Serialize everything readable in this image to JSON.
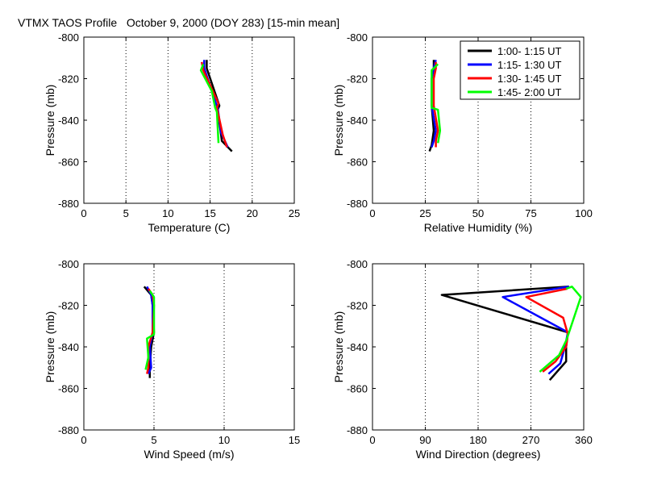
{
  "figure": {
    "title": "VTMX TAOS Profile   October 9, 2000 (DOY 283) [15-min mean]"
  },
  "legend": {
    "location": "top-right of relative-humidity panel",
    "entries": [
      {
        "label": "1:00- 1:15 UT",
        "color": "#000000"
      },
      {
        "label": "1:15- 1:30 UT",
        "color": "#0000ff"
      },
      {
        "label": "1:30- 1:45 UT",
        "color": "#ff0000"
      },
      {
        "label": "1:45- 2:00 UT",
        "color": "#00ff00"
      }
    ]
  },
  "chart_data": [
    {
      "type": "line",
      "id": "temperature",
      "xlabel": "Temperature (C)",
      "ylabel": "Pressure (mb)",
      "xlim": [
        0,
        25
      ],
      "ylim": [
        -880,
        -800
      ],
      "xticks": [
        0,
        5,
        10,
        15,
        20,
        25
      ],
      "yticks": [
        -880,
        -860,
        -840,
        -820,
        -800
      ],
      "grid": "vertical dotted",
      "series": [
        {
          "name": "1:00- 1:15 UT",
          "color": "#000000",
          "x": [
            14.6,
            14.6,
            16.1,
            15.9,
            16.4,
            17.6
          ],
          "y": [
            -811,
            -815,
            -833,
            -835,
            -850,
            -855
          ]
        },
        {
          "name": "1:15- 1:30 UT",
          "color": "#0000ff",
          "x": [
            14.3,
            14.3,
            15.7,
            15.9,
            16.3,
            17.1
          ],
          "y": [
            -811,
            -815,
            -832,
            -834,
            -846,
            -853
          ]
        },
        {
          "name": "1:30- 1:45 UT",
          "color": "#ff0000",
          "x": [
            14.0,
            14.2,
            16.0,
            15.8,
            16.5,
            17.0
          ],
          "y": [
            -812,
            -816,
            -832,
            -834,
            -847,
            -853
          ]
        },
        {
          "name": "1:45- 2:00 UT",
          "color": "#00ff00",
          "x": [
            14.2,
            13.9,
            15.2,
            15.6,
            15.8,
            16.0
          ],
          "y": [
            -813,
            -816,
            -826,
            -834,
            -836,
            -851
          ]
        }
      ]
    },
    {
      "type": "line",
      "id": "relative-humidity",
      "xlabel": "Relative Humidity (%)",
      "ylabel": "Pressure (mb)",
      "xlim": [
        0,
        100
      ],
      "ylim": [
        -880,
        -800
      ],
      "xticks": [
        0,
        25,
        50,
        75,
        100
      ],
      "yticks": [
        -880,
        -860,
        -840,
        -820,
        -800
      ],
      "grid": "vertical dotted",
      "series": [
        {
          "name": "1:00- 1:15 UT",
          "color": "#000000",
          "x": [
            29,
            29,
            28,
            28,
            29,
            28,
            27
          ],
          "y": [
            -811,
            -815,
            -820,
            -833,
            -845,
            -852,
            -855
          ]
        },
        {
          "name": "1:15- 1:30 UT",
          "color": "#0000ff",
          "x": [
            30,
            29,
            28,
            28,
            30,
            29,
            28
          ],
          "y": [
            -811,
            -815,
            -820,
            -833,
            -845,
            -850,
            -853
          ]
        },
        {
          "name": "1:30- 1:45 UT",
          "color": "#ff0000",
          "x": [
            30,
            30,
            29,
            29,
            31,
            30,
            30
          ],
          "y": [
            -812,
            -815,
            -820,
            -833,
            -845,
            -850,
            -853
          ]
        },
        {
          "name": "1:45- 2:00 UT",
          "color": "#00ff00",
          "x": [
            31,
            28,
            28,
            28,
            31,
            32,
            31
          ],
          "y": [
            -813,
            -816,
            -820,
            -834,
            -835,
            -845,
            -851
          ]
        }
      ]
    },
    {
      "type": "line",
      "id": "wind-speed",
      "xlabel": "Wind Speed (m/s)",
      "ylabel": "Pressure (mb)",
      "xlim": [
        0,
        15
      ],
      "ylim": [
        -880,
        -800
      ],
      "xticks": [
        0,
        5,
        10,
        15
      ],
      "yticks": [
        -880,
        -860,
        -840,
        -820,
        -800
      ],
      "grid": "vertical dotted",
      "series": [
        {
          "name": "1:00- 1:15 UT",
          "color": "#000000",
          "x": [
            4.3,
            4.8,
            4.9,
            5.0,
            4.8,
            4.7,
            4.7
          ],
          "y": [
            -811,
            -815,
            -820,
            -833,
            -840,
            -850,
            -855
          ]
        },
        {
          "name": "1:15- 1:30 UT",
          "color": "#0000ff",
          "x": [
            4.5,
            4.8,
            4.9,
            4.9,
            4.7,
            4.8,
            4.6
          ],
          "y": [
            -811,
            -815,
            -820,
            -833,
            -840,
            -850,
            -853
          ]
        },
        {
          "name": "1:30- 1:45 UT",
          "color": "#ff0000",
          "x": [
            4.6,
            4.9,
            5.0,
            4.9,
            4.6,
            4.6,
            4.5
          ],
          "y": [
            -812,
            -815,
            -820,
            -833,
            -840,
            -850,
            -853
          ]
        },
        {
          "name": "1:45- 2:00 UT",
          "color": "#00ff00",
          "x": [
            4.7,
            5.0,
            5.0,
            5.0,
            4.5,
            4.6,
            4.4
          ],
          "y": [
            -813,
            -816,
            -820,
            -834,
            -836,
            -845,
            -851
          ]
        }
      ]
    },
    {
      "type": "line",
      "id": "wind-direction",
      "xlabel": "Wind Direction (degrees)",
      "ylabel": "Pressure (mb)",
      "xlim": [
        0,
        360
      ],
      "ylim": [
        -880,
        -800
      ],
      "xticks": [
        0,
        90,
        180,
        270,
        360
      ],
      "yticks": [
        -880,
        -860,
        -840,
        -820,
        -800
      ],
      "grid": "vertical dotted",
      "series": [
        {
          "name": "1:00- 1:15 UT",
          "color": "#000000",
          "x": [
            335,
            118,
            333,
            330,
            330,
            302
          ],
          "y": [
            -811,
            -815,
            -833,
            -840,
            -847,
            -856
          ]
        },
        {
          "name": "1:15- 1:30 UT",
          "color": "#0000ff",
          "x": [
            335,
            222,
            333,
            328,
            320,
            300
          ],
          "y": [
            -811,
            -816,
            -833,
            -840,
            -848,
            -853
          ]
        },
        {
          "name": "1:30- 1:45 UT",
          "color": "#ff0000",
          "x": [
            332,
            262,
            325,
            333,
            330,
            312,
            290
          ],
          "y": [
            -812,
            -816,
            -826,
            -834,
            -840,
            -847,
            -852
          ]
        },
        {
          "name": "1:45- 2:00 UT",
          "color": "#00ff00",
          "x": [
            330,
            340,
            355,
            335,
            330,
            318,
            285
          ],
          "y": [
            -812,
            -811,
            -816,
            -833,
            -837,
            -844,
            -852
          ]
        }
      ]
    }
  ]
}
